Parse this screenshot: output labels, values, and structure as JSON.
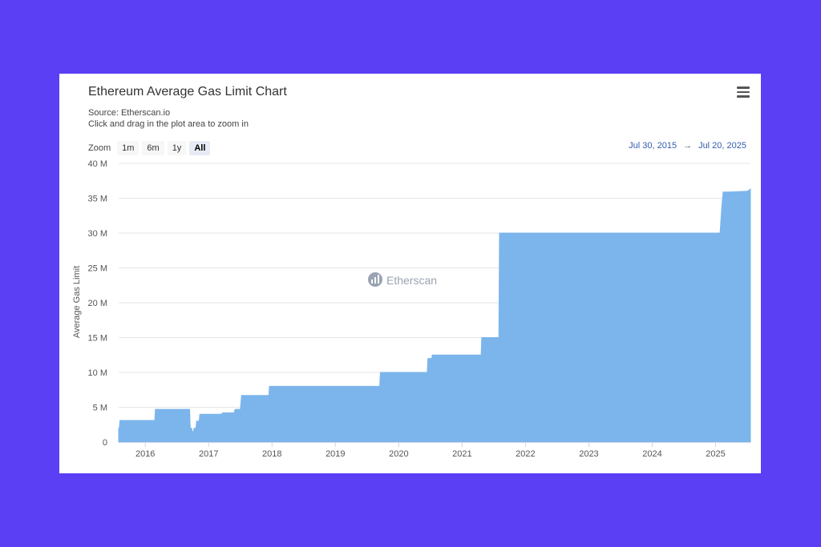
{
  "header": {
    "title": "Ethereum Average Gas Limit Chart",
    "source": "Source: Etherscan.io",
    "hint": "Click and drag in the plot area to zoom in"
  },
  "zoom": {
    "label": "Zoom",
    "buttons": [
      "1m",
      "6m",
      "1y",
      "All"
    ],
    "active": "All"
  },
  "range": {
    "from": "Jul 30, 2015",
    "arrow": "→",
    "to": "Jul 20, 2025"
  },
  "watermark": "Etherscan",
  "icons": {
    "menu": "hamburger-menu-icon",
    "watermark_logo": "etherscan-logo-icon"
  },
  "colors": {
    "fill": "#7cb5ec",
    "background": "#5a3ff5"
  },
  "chart_data": {
    "type": "area",
    "title": "Ethereum Average Gas Limit Chart",
    "ylabel": "Average Gas Limit",
    "xlabel": "",
    "xlim": [
      2015.58,
      2025.55
    ],
    "ylim": [
      0,
      40000000
    ],
    "yticks": [
      0,
      5000000,
      10000000,
      15000000,
      20000000,
      25000000,
      30000000,
      35000000,
      40000000
    ],
    "ytick_labels": [
      "0",
      "5 M",
      "10 M",
      "15 M",
      "20 M",
      "25 M",
      "30 M",
      "35 M",
      "40 M"
    ],
    "xticks": [
      2016,
      2017,
      2018,
      2019,
      2020,
      2021,
      2022,
      2023,
      2024,
      2025
    ],
    "xtick_labels": [
      "2016",
      "2017",
      "2018",
      "2019",
      "2020",
      "2021",
      "2022",
      "2023",
      "2024",
      "2025"
    ],
    "grid": true,
    "legend": "none",
    "series": [
      {
        "x": [
          2015.58,
          2015.59,
          2015.6,
          2015.61,
          2016.15,
          2016.16,
          2016.7,
          2016.71,
          2016.73,
          2016.74,
          2016.76,
          2016.77,
          2016.8,
          2016.81,
          2016.85,
          2016.86,
          2016.93,
          2016.94,
          2017.2,
          2017.22,
          2017.4,
          2017.42,
          2017.5,
          2017.52,
          2017.95,
          2017.96,
          2019.7,
          2019.71,
          2019.9,
          2019.91,
          2020.45,
          2020.46,
          2020.52,
          2020.53,
          2021.3,
          2021.31,
          2021.58,
          2021.59,
          2025.07,
          2025.1,
          2025.12,
          2025.2,
          2025.5,
          2025.55
        ],
        "y": [
          2000000,
          2000000,
          3100000,
          3100000,
          3100000,
          4700000,
          4700000,
          2000000,
          2000000,
          1500000,
          1500000,
          2000000,
          2000000,
          3000000,
          3000000,
          4000000,
          4000000,
          4000000,
          4000000,
          4200000,
          4200000,
          4700000,
          4700000,
          6700000,
          6700000,
          8000000,
          8000000,
          10000000,
          10000000,
          10000000,
          10000000,
          12000000,
          12000000,
          12500000,
          12500000,
          15000000,
          15000000,
          30000000,
          30000000,
          34000000,
          35900000,
          35900000,
          36000000,
          36300000
        ]
      }
    ]
  }
}
